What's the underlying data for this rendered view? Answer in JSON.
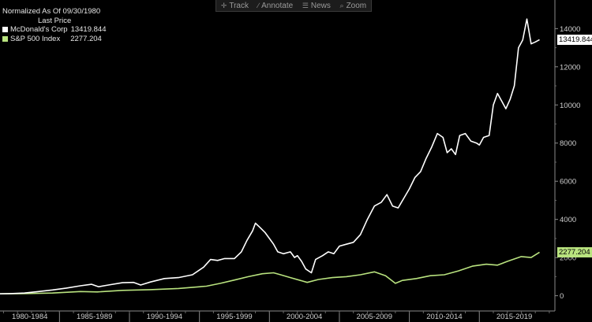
{
  "toolbar": {
    "items": [
      {
        "label": "Track",
        "icon": "crosshair-icon"
      },
      {
        "label": "Annotate",
        "icon": "pencil-icon"
      },
      {
        "label": "News",
        "icon": "news-icon"
      },
      {
        "label": "Zoom",
        "icon": "magnifier-icon"
      }
    ]
  },
  "legend": {
    "title": "Normalized As Of 09/30/1980",
    "subtitle": "Last Price",
    "entries": [
      {
        "name": "McDonald's Corp",
        "value": "13419.844",
        "color": "#ffffff"
      },
      {
        "name": "S&P 500 Index",
        "value": "2277.204",
        "color": "#b9e37f"
      }
    ]
  },
  "chart_data": {
    "type": "line",
    "ylim": [
      -800,
      15500
    ],
    "yticks": [
      0,
      2000,
      4000,
      6000,
      8000,
      10000,
      12000,
      14000
    ],
    "xlim": [
      1980.75,
      2020.4
    ],
    "x_period_labels": [
      "1980-1984",
      "1985-1989",
      "1990-1994",
      "1995-1999",
      "2000-2004",
      "2005-2009",
      "2010-2014",
      "2015-2019"
    ],
    "x_period_starts": [
      1980,
      1985,
      1990,
      1995,
      2000,
      2005,
      2010,
      2015
    ],
    "grid": false,
    "series": [
      {
        "name": "McDonald's Corp",
        "color": "#ffffff",
        "last_value": "13419.844",
        "points": [
          [
            1980.75,
            100
          ],
          [
            1981.5,
            110
          ],
          [
            1982.5,
            140
          ],
          [
            1983.5,
            220
          ],
          [
            1984.5,
            300
          ],
          [
            1985.5,
            400
          ],
          [
            1986.5,
            520
          ],
          [
            1987.3,
            600
          ],
          [
            1987.8,
            470
          ],
          [
            1988.5,
            560
          ],
          [
            1989.5,
            680
          ],
          [
            1990.3,
            700
          ],
          [
            1990.8,
            560
          ],
          [
            1991.5,
            720
          ],
          [
            1992.5,
            900
          ],
          [
            1993.5,
            950
          ],
          [
            1994.5,
            1100
          ],
          [
            1995.3,
            1500
          ],
          [
            1995.8,
            1900
          ],
          [
            1996.3,
            1850
          ],
          [
            1996.8,
            1950
          ],
          [
            1997.5,
            1950
          ],
          [
            1998.0,
            2300
          ],
          [
            1998.4,
            2900
          ],
          [
            1998.8,
            3400
          ],
          [
            1999.0,
            3800
          ],
          [
            1999.3,
            3600
          ],
          [
            1999.7,
            3300
          ],
          [
            2000.0,
            3000
          ],
          [
            2000.3,
            2700
          ],
          [
            2000.6,
            2300
          ],
          [
            2001.0,
            2200
          ],
          [
            2001.5,
            2300
          ],
          [
            2001.8,
            2000
          ],
          [
            2002.0,
            2100
          ],
          [
            2002.3,
            1800
          ],
          [
            2002.6,
            1400
          ],
          [
            2003.0,
            1200
          ],
          [
            2003.3,
            1900
          ],
          [
            2003.8,
            2100
          ],
          [
            2004.2,
            2300
          ],
          [
            2004.6,
            2200
          ],
          [
            2005.0,
            2600
          ],
          [
            2005.5,
            2700
          ],
          [
            2006.0,
            2800
          ],
          [
            2006.5,
            3200
          ],
          [
            2007.0,
            4000
          ],
          [
            2007.5,
            4700
          ],
          [
            2008.0,
            4900
          ],
          [
            2008.4,
            5300
          ],
          [
            2008.8,
            4700
          ],
          [
            2009.2,
            4600
          ],
          [
            2009.6,
            5100
          ],
          [
            2010.0,
            5600
          ],
          [
            2010.4,
            6200
          ],
          [
            2010.8,
            6500
          ],
          [
            2011.2,
            7200
          ],
          [
            2011.6,
            7800
          ],
          [
            2012.0,
            8500
          ],
          [
            2012.4,
            8300
          ],
          [
            2012.7,
            7500
          ],
          [
            2013.0,
            7700
          ],
          [
            2013.3,
            7400
          ],
          [
            2013.6,
            8400
          ],
          [
            2014.0,
            8500
          ],
          [
            2014.4,
            8100
          ],
          [
            2014.8,
            8000
          ],
          [
            2015.0,
            7900
          ],
          [
            2015.3,
            8300
          ],
          [
            2015.7,
            8400
          ],
          [
            2016.0,
            10000
          ],
          [
            2016.3,
            10600
          ],
          [
            2016.6,
            10200
          ],
          [
            2016.9,
            9800
          ],
          [
            2017.2,
            10300
          ],
          [
            2017.5,
            11000
          ],
          [
            2017.8,
            13000
          ],
          [
            2018.1,
            13400
          ],
          [
            2018.4,
            14500
          ],
          [
            2018.7,
            13200
          ],
          [
            2019.0,
            13300
          ],
          [
            2019.3,
            13419.844
          ]
        ]
      },
      {
        "name": "S&P 500 Index",
        "color": "#b9e37f",
        "last_value": "2277.204",
        "points": [
          [
            1980.75,
            100
          ],
          [
            1982.5,
            110
          ],
          [
            1984.5,
            140
          ],
          [
            1986.5,
            220
          ],
          [
            1987.7,
            200
          ],
          [
            1989.5,
            280
          ],
          [
            1991.5,
            320
          ],
          [
            1993.5,
            380
          ],
          [
            1995.5,
            500
          ],
          [
            1996.5,
            650
          ],
          [
            1997.5,
            820
          ],
          [
            1998.5,
            1000
          ],
          [
            1999.5,
            1150
          ],
          [
            2000.3,
            1200
          ],
          [
            2000.8,
            1100
          ],
          [
            2001.5,
            950
          ],
          [
            2002.7,
            700
          ],
          [
            2003.5,
            850
          ],
          [
            2004.5,
            950
          ],
          [
            2005.5,
            1000
          ],
          [
            2006.5,
            1100
          ],
          [
            2007.5,
            1250
          ],
          [
            2008.3,
            1050
          ],
          [
            2009.0,
            650
          ],
          [
            2009.5,
            800
          ],
          [
            2010.5,
            900
          ],
          [
            2011.5,
            1050
          ],
          [
            2012.5,
            1100
          ],
          [
            2013.5,
            1300
          ],
          [
            2014.5,
            1550
          ],
          [
            2015.5,
            1650
          ],
          [
            2016.3,
            1600
          ],
          [
            2017.0,
            1800
          ],
          [
            2018.0,
            2050
          ],
          [
            2018.7,
            2000
          ],
          [
            2019.3,
            2277.204
          ]
        ]
      }
    ]
  }
}
